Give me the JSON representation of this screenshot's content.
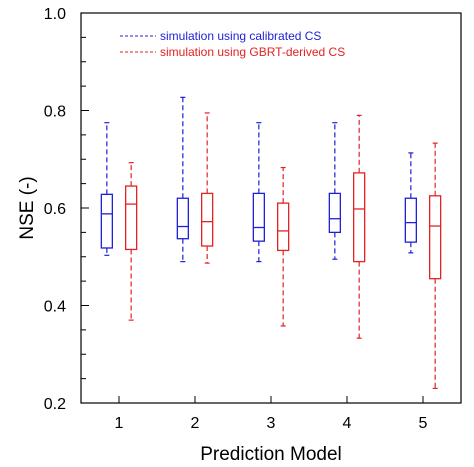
{
  "chart_data": {
    "type": "box",
    "xlabel": "Prediction Model",
    "ylabel": "NSE (-)",
    "ylim": [
      0.2,
      1.0
    ],
    "xlim": [
      0.5,
      5.5
    ],
    "yticks": [
      0.2,
      0.4,
      0.6,
      0.8,
      1.0
    ],
    "ytick_labels": [
      "0.2",
      "0.4",
      "0.6",
      "0.8",
      "1.0"
    ],
    "categories": [
      "1",
      "2",
      "3",
      "4",
      "5"
    ],
    "legend_position": "top-left",
    "grid": false,
    "series": [
      {
        "name": "simulation using calibrated CS",
        "color": "#1f1fd6",
        "boxes": [
          {
            "category": "1",
            "whisker_low": 0.503,
            "q1": 0.518,
            "median": 0.588,
            "q3": 0.628,
            "whisker_high": 0.775
          },
          {
            "category": "2",
            "whisker_low": 0.49,
            "q1": 0.537,
            "median": 0.562,
            "q3": 0.62,
            "whisker_high": 0.827
          },
          {
            "category": "3",
            "whisker_low": 0.49,
            "q1": 0.532,
            "median": 0.56,
            "q3": 0.63,
            "whisker_high": 0.775
          },
          {
            "category": "4",
            "whisker_low": 0.495,
            "q1": 0.55,
            "median": 0.578,
            "q3": 0.63,
            "whisker_high": 0.775
          },
          {
            "category": "5",
            "whisker_low": 0.508,
            "q1": 0.53,
            "median": 0.57,
            "q3": 0.62,
            "whisker_high": 0.713
          }
        ]
      },
      {
        "name": "simulation using GBRT-derived CS",
        "color": "#e32222",
        "boxes": [
          {
            "category": "1",
            "whisker_low": 0.37,
            "q1": 0.515,
            "median": 0.608,
            "q3": 0.645,
            "whisker_high": 0.693
          },
          {
            "category": "2",
            "whisker_low": 0.487,
            "q1": 0.522,
            "median": 0.572,
            "q3": 0.63,
            "whisker_high": 0.795
          },
          {
            "category": "3",
            "whisker_low": 0.358,
            "q1": 0.513,
            "median": 0.553,
            "q3": 0.61,
            "whisker_high": 0.683
          },
          {
            "category": "4",
            "whisker_low": 0.333,
            "q1": 0.49,
            "median": 0.598,
            "q3": 0.672,
            "whisker_high": 0.79
          },
          {
            "category": "5",
            "whisker_low": 0.23,
            "q1": 0.455,
            "median": 0.563,
            "q3": 0.625,
            "whisker_high": 0.733
          }
        ]
      }
    ]
  }
}
